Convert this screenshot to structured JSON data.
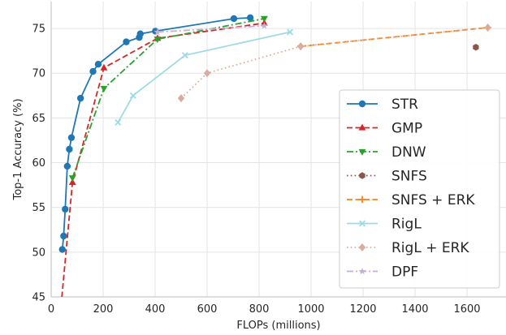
{
  "chart_data": {
    "type": "line",
    "title": "",
    "xlabel": "FLOPs (millions)",
    "ylabel": "Top-1 Accuracy (%)",
    "xlim": [
      0,
      1750
    ],
    "ylim": [
      45,
      78
    ],
    "xticks": [
      0,
      200,
      400,
      600,
      800,
      1000,
      1200,
      1400,
      1600
    ],
    "yticks": [
      45,
      50,
      55,
      60,
      65,
      70,
      75
    ],
    "grid": true,
    "legend_position": "lower right",
    "series": [
      {
        "name": "STR",
        "color": "#1f77b4",
        "dash": "solid",
        "marker": "circle",
        "points": [
          [
            43,
            50.3
          ],
          [
            48,
            51.8
          ],
          [
            54,
            54.8
          ],
          [
            62,
            59.6
          ],
          [
            70,
            61.5
          ],
          [
            78,
            62.8
          ],
          [
            113,
            67.2
          ],
          [
            161,
            70.2
          ],
          [
            181,
            71.0
          ],
          [
            289,
            73.5
          ],
          [
            339,
            74.0
          ],
          [
            343,
            74.4
          ],
          [
            401,
            74.7
          ],
          [
            703,
            76.1
          ],
          [
            766,
            76.2
          ]
        ]
      },
      {
        "name": "GMP",
        "color": "#d62728",
        "dash": "dashed",
        "marker": "triangle-up",
        "points": [
          [
            38,
            44.0
          ],
          [
            82,
            57.8
          ],
          [
            203,
            70.6
          ],
          [
            409,
            73.9
          ],
          [
            820,
            75.6
          ]
        ]
      },
      {
        "name": "DNW",
        "color": "#2ca02c",
        "dash": "dashdot",
        "marker": "triangle-down",
        "points": [
          [
            82,
            58.3
          ],
          [
            203,
            68.3
          ],
          [
            409,
            73.8
          ],
          [
            820,
            76.1
          ]
        ]
      },
      {
        "name": "SNFS",
        "color": "#8c564b",
        "dash": "dotted",
        "marker": "hexagon",
        "points": [
          [
            1634,
            72.9
          ]
        ]
      },
      {
        "name": "SNFS + ERK",
        "color": "#ff7f0e",
        "dash": "dashed",
        "marker": "plus",
        "points": [
          [
            960,
            73.0
          ],
          [
            1680,
            75.1
          ]
        ]
      },
      {
        "name": "RigL",
        "color": "#9edae5",
        "dash": "solid",
        "marker": "x",
        "points": [
          [
            257,
            64.5
          ],
          [
            315,
            67.5
          ],
          [
            515,
            72.0
          ],
          [
            919,
            74.6
          ]
        ]
      },
      {
        "name": "RigL + ERK",
        "color": "#dbac9d",
        "dash": "dotted",
        "marker": "diamond",
        "points": [
          [
            500,
            67.2
          ],
          [
            600,
            70.0
          ],
          [
            960,
            73.0
          ],
          [
            1680,
            75.1
          ]
        ]
      },
      {
        "name": "DPF",
        "color": "#c5b0d5",
        "dash": "dashdot",
        "marker": "star",
        "points": [
          [
            409,
            74.6
          ],
          [
            820,
            75.3
          ]
        ]
      }
    ]
  }
}
